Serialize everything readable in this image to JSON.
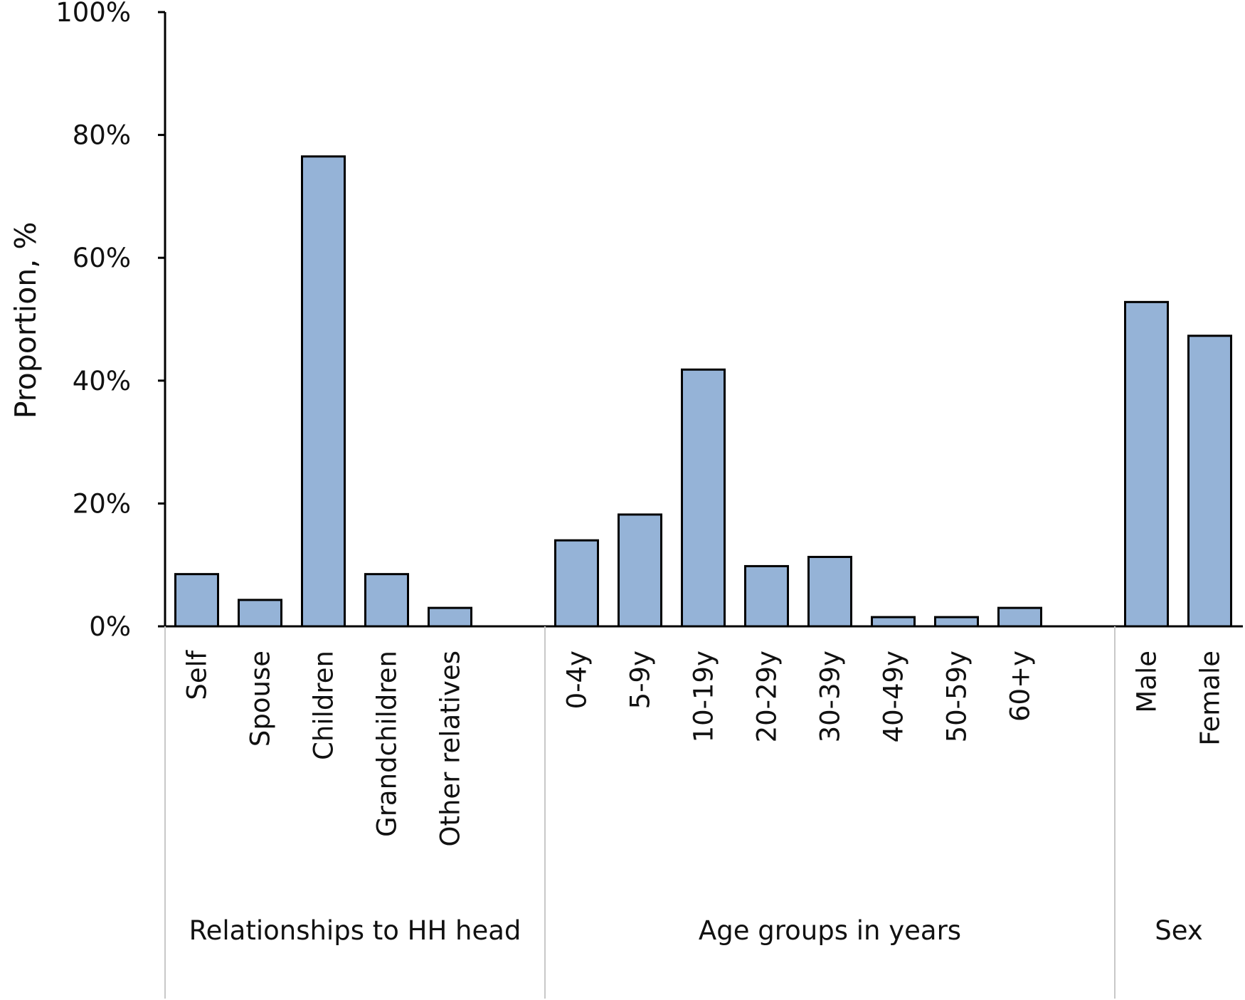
{
  "chart_data": {
    "type": "bar",
    "ylabel": "Proportion, %",
    "ylim": [
      0,
      100
    ],
    "yticks": [
      "0%",
      "20%",
      "40%",
      "60%",
      "80%",
      "100%"
    ],
    "grid": false,
    "bar_color": "#95b3d7",
    "groups": [
      {
        "label": "Relationships to HH head",
        "categories": [
          "Self",
          "Spouse",
          "Children",
          "Grandchildren",
          "Other relatives"
        ],
        "values": [
          8.5,
          4.3,
          76.5,
          8.5,
          3.0
        ]
      },
      {
        "label": "Age groups in years",
        "categories": [
          "0-4y",
          "5-9y",
          "10-19y",
          "20-29y",
          "30-39y",
          "40-49y",
          "50-59y",
          "60+y"
        ],
        "values": [
          14.0,
          18.2,
          41.8,
          9.8,
          11.3,
          1.5,
          1.5,
          3.0
        ]
      },
      {
        "label": "Sex",
        "categories": [
          "Male",
          "Female"
        ],
        "values": [
          52.8,
          47.3
        ]
      }
    ]
  }
}
